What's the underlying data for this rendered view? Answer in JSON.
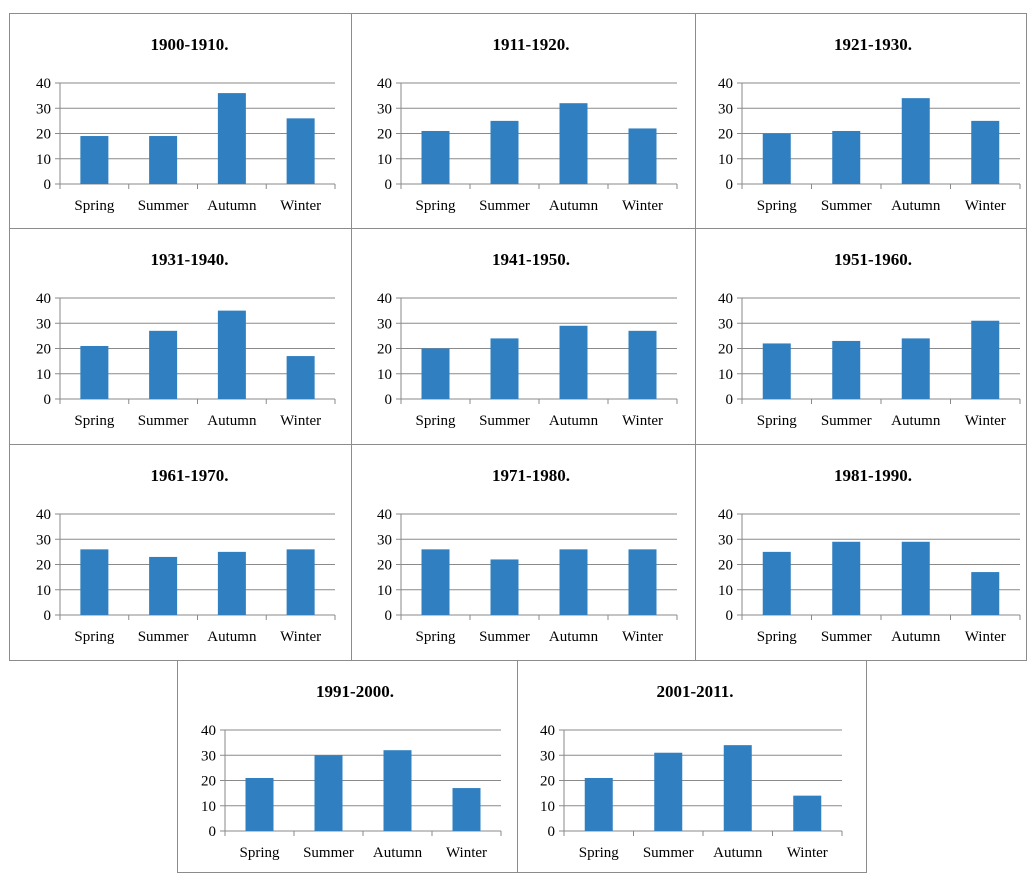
{
  "colors": {
    "bar": "#2f7fc1"
  },
  "chart_data": [
    {
      "type": "bar",
      "title": "1900-1910.",
      "categories": [
        "Spring",
        "Summer",
        "Autumn",
        "Winter"
      ],
      "values": [
        19,
        19,
        36,
        26
      ],
      "ylim": [
        0,
        40
      ],
      "yticks": [
        "0",
        "10",
        "20",
        "30",
        "40"
      ],
      "grid": true
    },
    {
      "type": "bar",
      "title": "1911-1920.",
      "categories": [
        "Spring",
        "Summer",
        "Autumn",
        "Winter"
      ],
      "values": [
        21,
        25,
        32,
        22
      ],
      "ylim": [
        0,
        40
      ],
      "yticks": [
        "0",
        "10",
        "20",
        "30",
        "40"
      ],
      "grid": true
    },
    {
      "type": "bar",
      "title": "1921-1930.",
      "categories": [
        "Spring",
        "Summer",
        "Autumn",
        "Winter"
      ],
      "values": [
        20,
        21,
        34,
        25
      ],
      "ylim": [
        0,
        40
      ],
      "yticks": [
        "0",
        "10",
        "20",
        "30",
        "40"
      ],
      "grid": true
    },
    {
      "type": "bar",
      "title": "1931-1940.",
      "categories": [
        "Spring",
        "Summer",
        "Autumn",
        "Winter"
      ],
      "values": [
        21,
        27,
        35,
        17
      ],
      "ylim": [
        0,
        40
      ],
      "yticks": [
        "0",
        "10",
        "20",
        "30",
        "40"
      ],
      "grid": true
    },
    {
      "type": "bar",
      "title": "1941-1950.",
      "categories": [
        "Spring",
        "Summer",
        "Autumn",
        "Winter"
      ],
      "values": [
        20,
        24,
        29,
        27
      ],
      "ylim": [
        0,
        40
      ],
      "yticks": [
        "0",
        "10",
        "20",
        "30",
        "40"
      ],
      "grid": true
    },
    {
      "type": "bar",
      "title": "1951-1960.",
      "categories": [
        "Spring",
        "Summer",
        "Autumn",
        "Winter"
      ],
      "values": [
        22,
        23,
        24,
        31
      ],
      "ylim": [
        0,
        40
      ],
      "yticks": [
        "0",
        "10",
        "20",
        "30",
        "40"
      ],
      "grid": true
    },
    {
      "type": "bar",
      "title": "1961-1970.",
      "categories": [
        "Spring",
        "Summer",
        "Autumn",
        "Winter"
      ],
      "values": [
        26,
        23,
        25,
        26
      ],
      "ylim": [
        0,
        40
      ],
      "yticks": [
        "0",
        "10",
        "20",
        "30",
        "40"
      ],
      "grid": true
    },
    {
      "type": "bar",
      "title": "1971-1980.",
      "categories": [
        "Spring",
        "Summer",
        "Autumn",
        "Winter"
      ],
      "values": [
        26,
        22,
        26,
        26
      ],
      "ylim": [
        0,
        40
      ],
      "yticks": [
        "0",
        "10",
        "20",
        "30",
        "40"
      ],
      "grid": true
    },
    {
      "type": "bar",
      "title": "1981-1990.",
      "categories": [
        "Spring",
        "Summer",
        "Autumn",
        "Winter"
      ],
      "values": [
        25,
        29,
        29,
        17
      ],
      "ylim": [
        0,
        40
      ],
      "yticks": [
        "0",
        "10",
        "20",
        "30",
        "40"
      ],
      "grid": true
    },
    {
      "type": "bar",
      "title": "1991-2000.",
      "categories": [
        "Spring",
        "Summer",
        "Autumn",
        "Winter"
      ],
      "values": [
        21,
        30,
        32,
        17
      ],
      "ylim": [
        0,
        40
      ],
      "yticks": [
        "0",
        "10",
        "20",
        "30",
        "40"
      ],
      "grid": true
    },
    {
      "type": "bar",
      "title": "2001-2011.",
      "categories": [
        "Spring",
        "Summer",
        "Autumn",
        "Winter"
      ],
      "values": [
        21,
        31,
        34,
        14
      ],
      "ylim": [
        0,
        40
      ],
      "yticks": [
        "0",
        "10",
        "20",
        "30",
        "40"
      ],
      "grid": true
    }
  ]
}
